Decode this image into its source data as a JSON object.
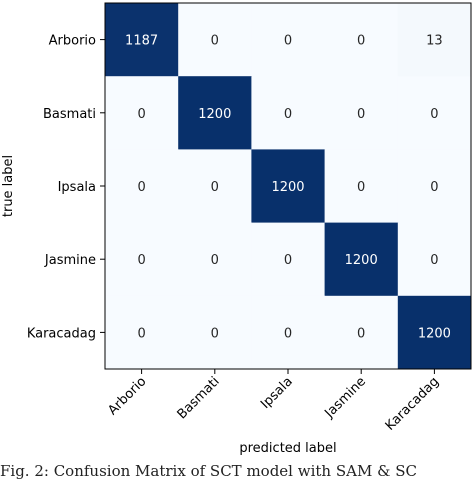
{
  "chart_data": {
    "type": "heatmap",
    "title": "",
    "xlabel": "predicted label",
    "ylabel": "true label",
    "x_categories": [
      "Arborio",
      "Basmati",
      "Ipsala",
      "Jasmine",
      "Karacadag"
    ],
    "y_categories": [
      "Arborio",
      "Basmati",
      "Ipsala",
      "Jasmine",
      "Karacadag"
    ],
    "values": [
      [
        1187,
        0,
        0,
        0,
        13
      ],
      [
        0,
        1200,
        0,
        0,
        0
      ],
      [
        0,
        0,
        1200,
        0,
        0
      ],
      [
        0,
        0,
        0,
        1200,
        0
      ],
      [
        0,
        0,
        0,
        0,
        1200
      ]
    ],
    "value_range": [
      0,
      1200
    ],
    "colormap": "Blues",
    "colors": {
      "low": "#f7fbff",
      "high": "#08306b",
      "text_dark": "#262626",
      "text_light": "#ffffff"
    },
    "x_tick_rotation_deg": 45,
    "grid": false
  },
  "caption": {
    "text": "Fig. 2: Confusion Matrix of SCT model with SAM & SC"
  }
}
